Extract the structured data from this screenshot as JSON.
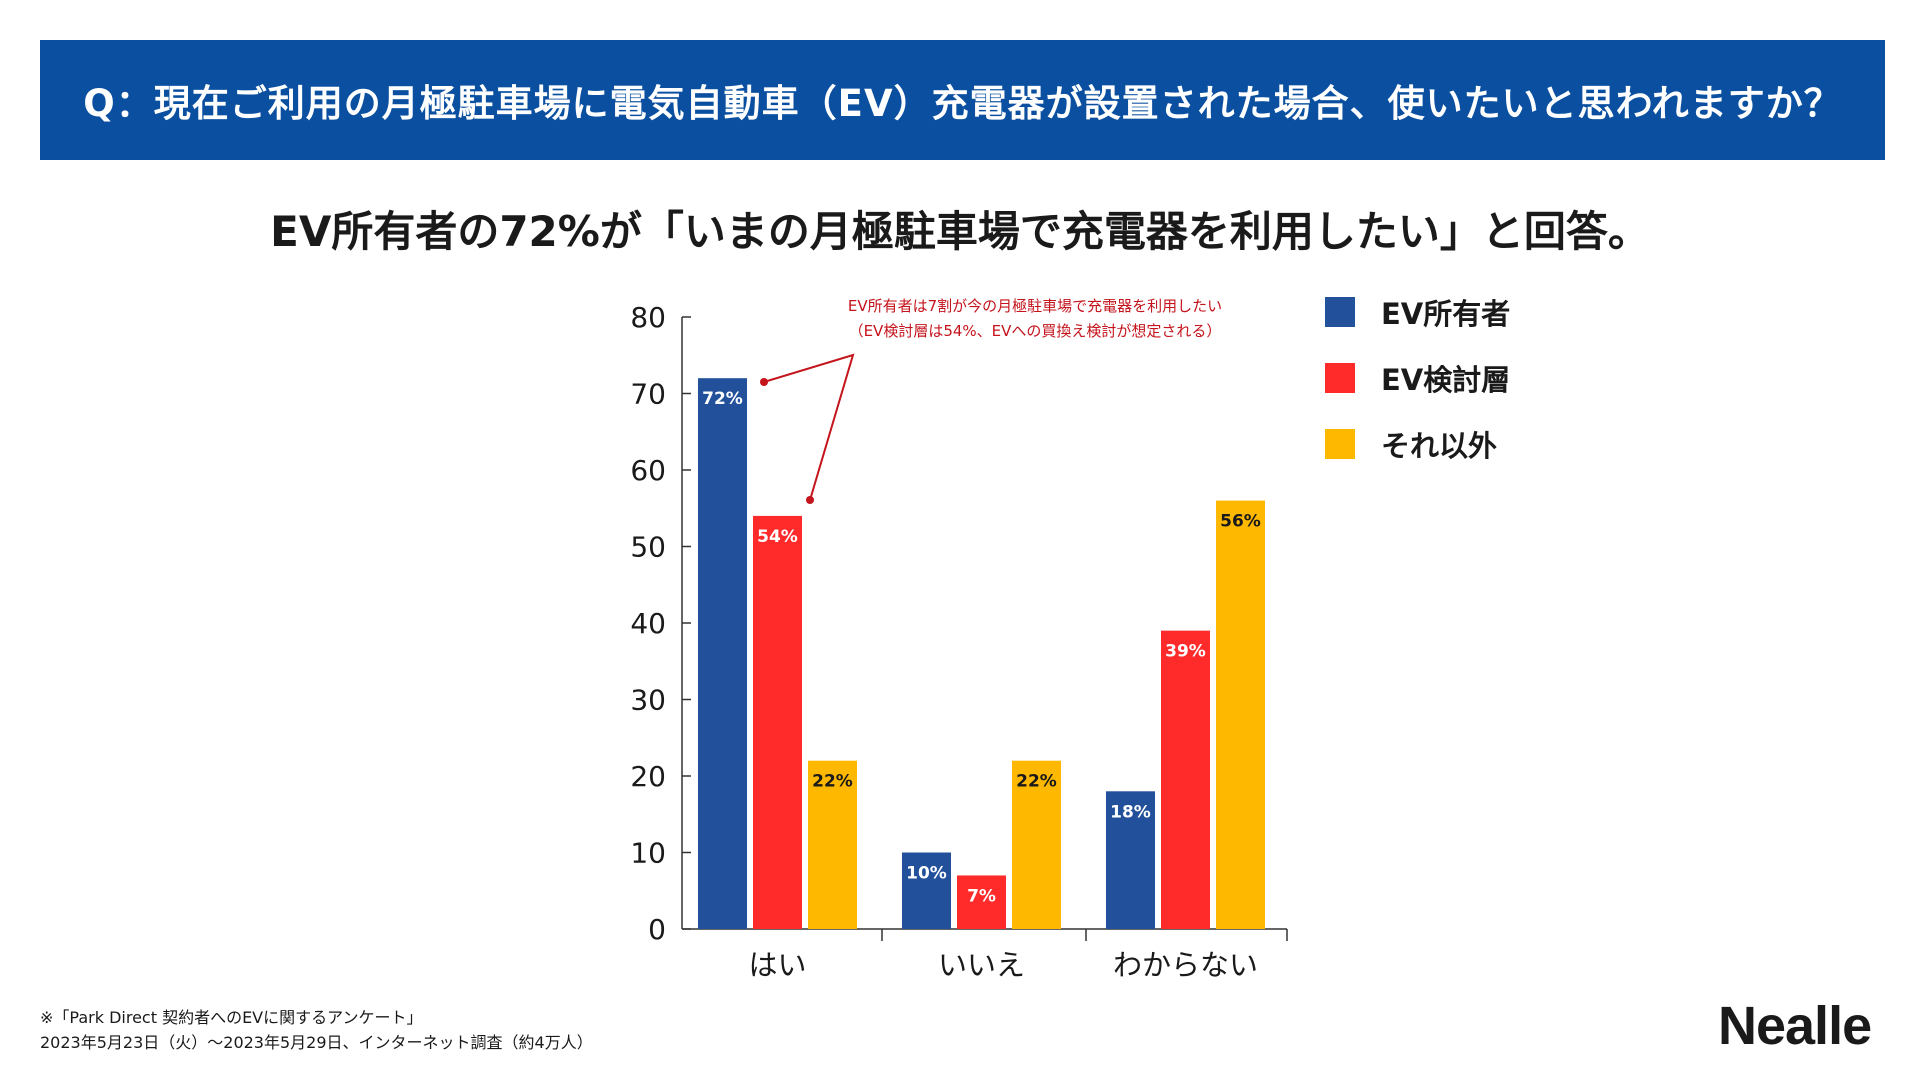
{
  "question": "Q：現在ご利用の月極駐車場に電気自動車（EV）充電器が設置された場合、使いたいと思われますか？",
  "headline": "EV所有者の72%が「いまの月極駐車場で充電器を利用したい」と回答。",
  "annotation": {
    "line1": "EV所有者は7割が今の月極駐車場で充電器を利用したい",
    "line2": "（EV検討層は54%、EVへの買換え検討が想定される）",
    "color": "#c4141c"
  },
  "footnote": {
    "line1": "※「Park Direct 契約者へのEVに関するアンケート」",
    "line2": "2023年5月23日（火）〜2023年5月29日、インターネット調査（約4万人）"
  },
  "logo": "Nealle",
  "colors": {
    "banner": "#0a4fa0",
    "ev_owner": "#22509a",
    "ev_consider": "#ff2b2b",
    "other": "#ffb800"
  },
  "chart_data": {
    "type": "bar",
    "title": "",
    "xlabel": "",
    "ylabel": "",
    "ylim": [
      0,
      80
    ],
    "yticks": [
      0,
      10,
      20,
      30,
      40,
      50,
      60,
      70,
      80
    ],
    "categories": [
      "はい",
      "いいえ",
      "わからない"
    ],
    "legend_position": "right",
    "grid": false,
    "series": [
      {
        "name": "EV所有者",
        "color": "#22509a",
        "label_color": "#ffffff",
        "values": [
          72,
          10,
          18
        ],
        "labels": [
          "72%",
          "10%",
          "18%"
        ]
      },
      {
        "name": "EV検討層",
        "color": "#ff2b2b",
        "label_color": "#ffffff",
        "values": [
          54,
          7,
          39
        ],
        "labels": [
          "54%",
          "7%",
          "39%"
        ]
      },
      {
        "name": "それ以外",
        "color": "#ffb800",
        "label_color": "#1a1a1a",
        "values": [
          22,
          22,
          56
        ],
        "labels": [
          "22%",
          "22%",
          "56%"
        ]
      }
    ]
  }
}
